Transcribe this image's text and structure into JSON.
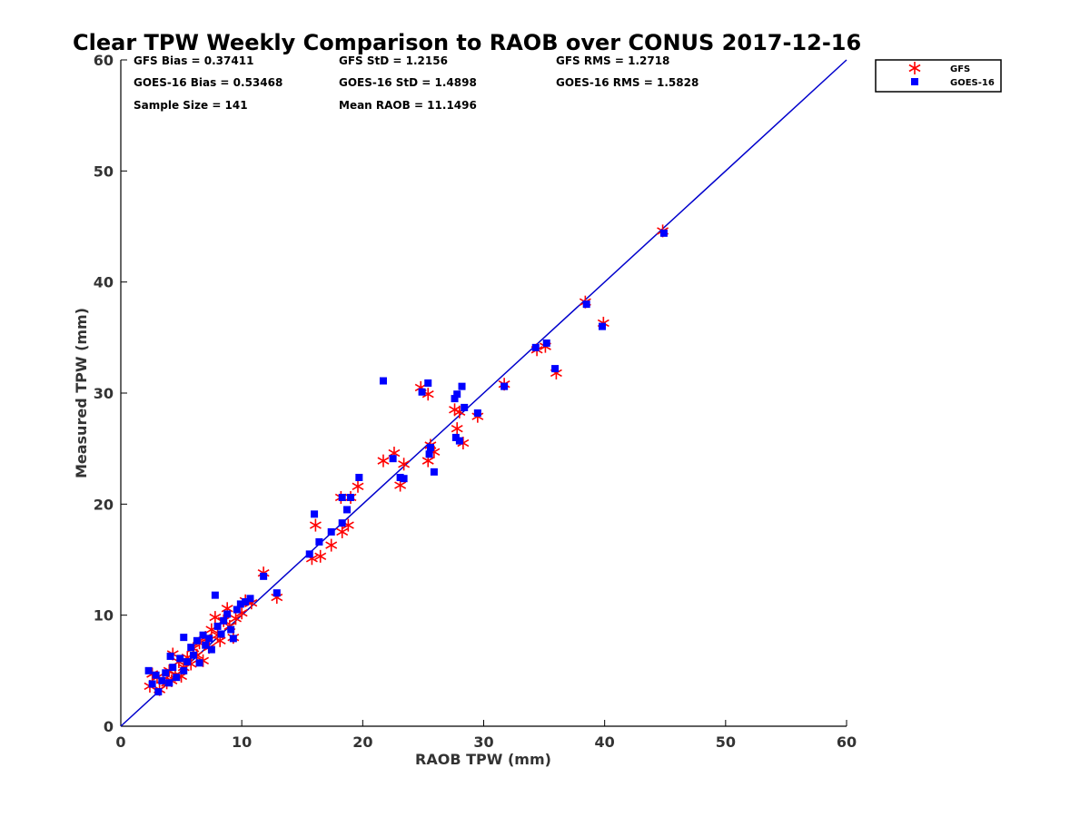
{
  "chart_data": {
    "type": "scatter",
    "title": "Clear TPW Weekly Comparison to RAOB over CONUS 2017-12-16",
    "xlabel": "RAOB TPW (mm)",
    "ylabel": "Measured TPW (mm)",
    "xlim": [
      0,
      60
    ],
    "ylim": [
      0,
      60
    ],
    "xticks": [
      "0",
      "10",
      "20",
      "30",
      "40",
      "50",
      "60"
    ],
    "yticks": [
      "0",
      "10",
      "20",
      "30",
      "40",
      "50",
      "60"
    ],
    "grid": false,
    "legend": {
      "placement": "top-right outside"
    },
    "reference_line": {
      "x": [
        0,
        60
      ],
      "y": [
        0,
        60
      ],
      "color": "#0000cc"
    },
    "stats": [
      [
        "GFS Bias = 0.37411",
        "GFS StD = 1.2156",
        "GFS RMS = 1.2718"
      ],
      [
        "GOES-16 Bias = 0.53468",
        "GOES-16 StD = 1.4898",
        "GOES-16 RMS = 1.5828"
      ],
      [
        "Sample Size = 141",
        "Mean RAOB = 11.1496",
        ""
      ]
    ],
    "series": [
      {
        "name": "GFS",
        "marker": "asterisk",
        "color": "#ff0000",
        "points": [
          [
            2.4,
            3.6
          ],
          [
            2.6,
            4.7
          ],
          [
            3.0,
            4.4
          ],
          [
            3.2,
            3.3
          ],
          [
            3.5,
            4.2
          ],
          [
            3.8,
            3.9
          ],
          [
            4.0,
            5.0
          ],
          [
            4.2,
            4.1
          ],
          [
            4.3,
            6.5
          ],
          [
            4.5,
            4.6
          ],
          [
            4.8,
            5.8
          ],
          [
            5.0,
            4.5
          ],
          [
            5.2,
            5.3
          ],
          [
            5.5,
            6.2
          ],
          [
            5.8,
            5.6
          ],
          [
            6.0,
            7.0
          ],
          [
            6.3,
            6.4
          ],
          [
            6.5,
            7.5
          ],
          [
            6.8,
            5.9
          ],
          [
            7.0,
            8.0
          ],
          [
            7.3,
            7.1
          ],
          [
            7.5,
            8.7
          ],
          [
            7.8,
            9.8
          ],
          [
            8.0,
            8.2
          ],
          [
            8.2,
            7.7
          ],
          [
            8.5,
            9.5
          ],
          [
            8.8,
            10.6
          ],
          [
            9.0,
            9.0
          ],
          [
            9.3,
            8.0
          ],
          [
            9.5,
            9.7
          ],
          [
            10.0,
            10.2
          ],
          [
            10.3,
            11.3
          ],
          [
            10.8,
            11.1
          ],
          [
            11.8,
            13.8
          ],
          [
            12.9,
            11.6
          ],
          [
            15.8,
            15.1
          ],
          [
            16.1,
            18.1
          ],
          [
            16.5,
            15.3
          ],
          [
            17.4,
            16.3
          ],
          [
            18.2,
            20.6
          ],
          [
            18.3,
            17.5
          ],
          [
            18.8,
            18.1
          ],
          [
            19.0,
            20.6
          ],
          [
            19.6,
            21.6
          ],
          [
            21.7,
            23.9
          ],
          [
            22.6,
            24.6
          ],
          [
            23.1,
            21.7
          ],
          [
            23.4,
            23.6
          ],
          [
            24.8,
            30.5
          ],
          [
            25.4,
            29.9
          ],
          [
            25.4,
            23.9
          ],
          [
            25.6,
            25.3
          ],
          [
            25.9,
            24.7
          ],
          [
            27.6,
            28.5
          ],
          [
            27.8,
            26.8
          ],
          [
            28.0,
            28.3
          ],
          [
            28.3,
            25.5
          ],
          [
            29.5,
            27.9
          ],
          [
            31.7,
            30.8
          ],
          [
            34.4,
            33.9
          ],
          [
            35.1,
            34.2
          ],
          [
            36.0,
            31.8
          ],
          [
            38.4,
            38.2
          ],
          [
            39.9,
            36.3
          ],
          [
            44.8,
            44.6
          ]
        ]
      },
      {
        "name": "GOES-16",
        "marker": "square",
        "color": "#0000ff",
        "points": [
          [
            2.3,
            5.0
          ],
          [
            2.6,
            3.8
          ],
          [
            2.9,
            4.6
          ],
          [
            3.1,
            3.1
          ],
          [
            3.4,
            4.1
          ],
          [
            3.7,
            4.8
          ],
          [
            4.0,
            3.9
          ],
          [
            4.1,
            6.3
          ],
          [
            4.3,
            5.3
          ],
          [
            4.6,
            4.4
          ],
          [
            4.9,
            6.1
          ],
          [
            5.2,
            8.0
          ],
          [
            5.2,
            5.0
          ],
          [
            5.5,
            5.8
          ],
          [
            5.8,
            7.1
          ],
          [
            6.0,
            6.4
          ],
          [
            6.3,
            7.7
          ],
          [
            6.5,
            5.7
          ],
          [
            6.8,
            8.2
          ],
          [
            7.0,
            7.3
          ],
          [
            7.3,
            7.9
          ],
          [
            7.5,
            6.9
          ],
          [
            7.8,
            11.8
          ],
          [
            8.0,
            9.0
          ],
          [
            8.3,
            8.3
          ],
          [
            8.5,
            9.5
          ],
          [
            8.8,
            10.1
          ],
          [
            9.1,
            8.7
          ],
          [
            9.3,
            7.9
          ],
          [
            9.6,
            10.5
          ],
          [
            9.9,
            11.0
          ],
          [
            10.3,
            11.2
          ],
          [
            10.7,
            11.5
          ],
          [
            11.8,
            13.5
          ],
          [
            12.9,
            12.0
          ],
          [
            15.6,
            15.5
          ],
          [
            16.0,
            19.1
          ],
          [
            16.4,
            16.6
          ],
          [
            17.4,
            17.5
          ],
          [
            18.3,
            20.6
          ],
          [
            18.3,
            18.3
          ],
          [
            18.7,
            19.5
          ],
          [
            19.0,
            20.6
          ],
          [
            19.7,
            22.4
          ],
          [
            21.7,
            31.1
          ],
          [
            22.5,
            24.1
          ],
          [
            23.1,
            22.4
          ],
          [
            23.4,
            22.3
          ],
          [
            24.9,
            30.1
          ],
          [
            25.4,
            30.9
          ],
          [
            25.5,
            24.5
          ],
          [
            25.6,
            25.1
          ],
          [
            25.9,
            22.9
          ],
          [
            27.6,
            29.5
          ],
          [
            27.7,
            26.0
          ],
          [
            27.8,
            29.9
          ],
          [
            28.0,
            25.7
          ],
          [
            28.2,
            30.6
          ],
          [
            28.4,
            28.7
          ],
          [
            29.5,
            28.2
          ],
          [
            31.7,
            30.6
          ],
          [
            34.3,
            34.1
          ],
          [
            35.2,
            34.5
          ],
          [
            35.9,
            32.2
          ],
          [
            38.5,
            38.0
          ],
          [
            39.8,
            36.0
          ],
          [
            44.9,
            44.4
          ]
        ]
      }
    ]
  }
}
